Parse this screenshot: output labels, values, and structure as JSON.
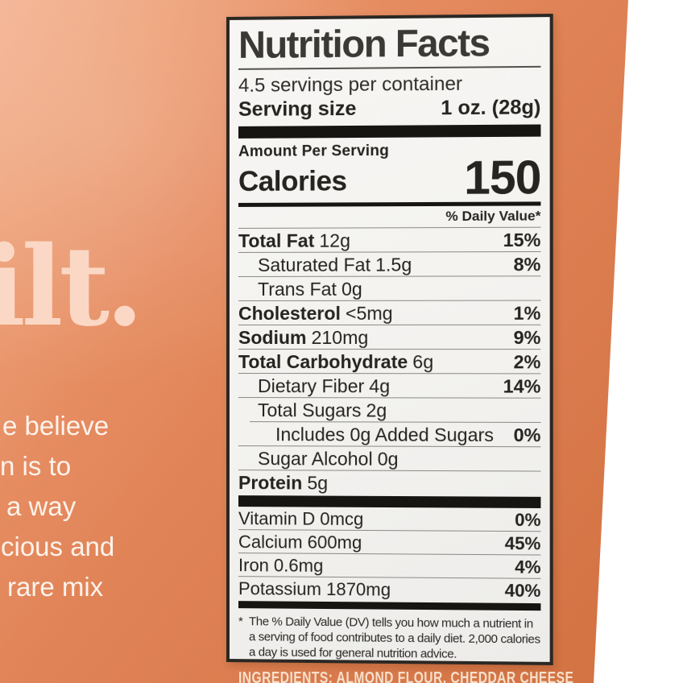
{
  "bag": {
    "brand_fragment": "ilt.",
    "brand_color": "#fbd8c5",
    "tagline_lines": [
      "e believe",
      "n is to",
      "a way",
      "cious and",
      "rare mix"
    ],
    "tagline_color": "#fdf3ec",
    "ingredients_fragment": "INGREDIENTS: ALMOND FLOUR, CHEDDAR CHEESE",
    "ingredients_color": "#f6dfca",
    "color_top_left": "#f4b392",
    "color_main": "#de8154",
    "color_bottom_right": "#d1703f"
  },
  "label": {
    "title": "Nutrition Facts",
    "servings_per_container": "4.5 servings per container",
    "serving_size_label": "Serving size",
    "serving_size_value": "1 oz. (28g)",
    "amount_per_serving": "Amount Per Serving",
    "calories_label": "Calories",
    "calories_value": "150",
    "daily_value_header": "% Daily Value*",
    "nutrients": [
      {
        "name": "Total Fat",
        "amount": "12g",
        "dv": "15%"
      },
      {
        "name": "Saturated Fat",
        "amount": "1.5g",
        "dv": "8%"
      },
      {
        "name": "Trans Fat",
        "amount": "0g",
        "dv": ""
      },
      {
        "name": "Cholesterol",
        "amount": "<5mg",
        "dv": "1%"
      },
      {
        "name": "Sodium",
        "amount": "210mg",
        "dv": "9%"
      },
      {
        "name": "Total Carbohydrate",
        "amount": "6g",
        "dv": "2%"
      },
      {
        "name": "Dietary Fiber",
        "amount": "4g",
        "dv": "14%"
      },
      {
        "name": "Total Sugars",
        "amount": "2g",
        "dv": ""
      },
      {
        "name": "Includes 0g Added Sugars",
        "amount": "",
        "dv": "0%"
      },
      {
        "name": "Sugar Alcohol",
        "amount": "0g",
        "dv": ""
      },
      {
        "name": "Protein",
        "amount": "5g",
        "dv": ""
      }
    ],
    "vitamins": [
      {
        "name": "Vitamin D",
        "amount": "0mcg",
        "dv": "0%"
      },
      {
        "name": "Calcium",
        "amount": "600mg",
        "dv": "45%"
      },
      {
        "name": "Iron",
        "amount": "0.6mg",
        "dv": "4%"
      },
      {
        "name": "Potassium",
        "amount": "1870mg",
        "dv": "40%"
      }
    ],
    "footnote_marker": "*",
    "footnote": "The % Daily Value (DV) tells you how much a nutrient in a serving of food contributes to a daily diet. 2,000 calories a day is used for general nutrition advice."
  }
}
